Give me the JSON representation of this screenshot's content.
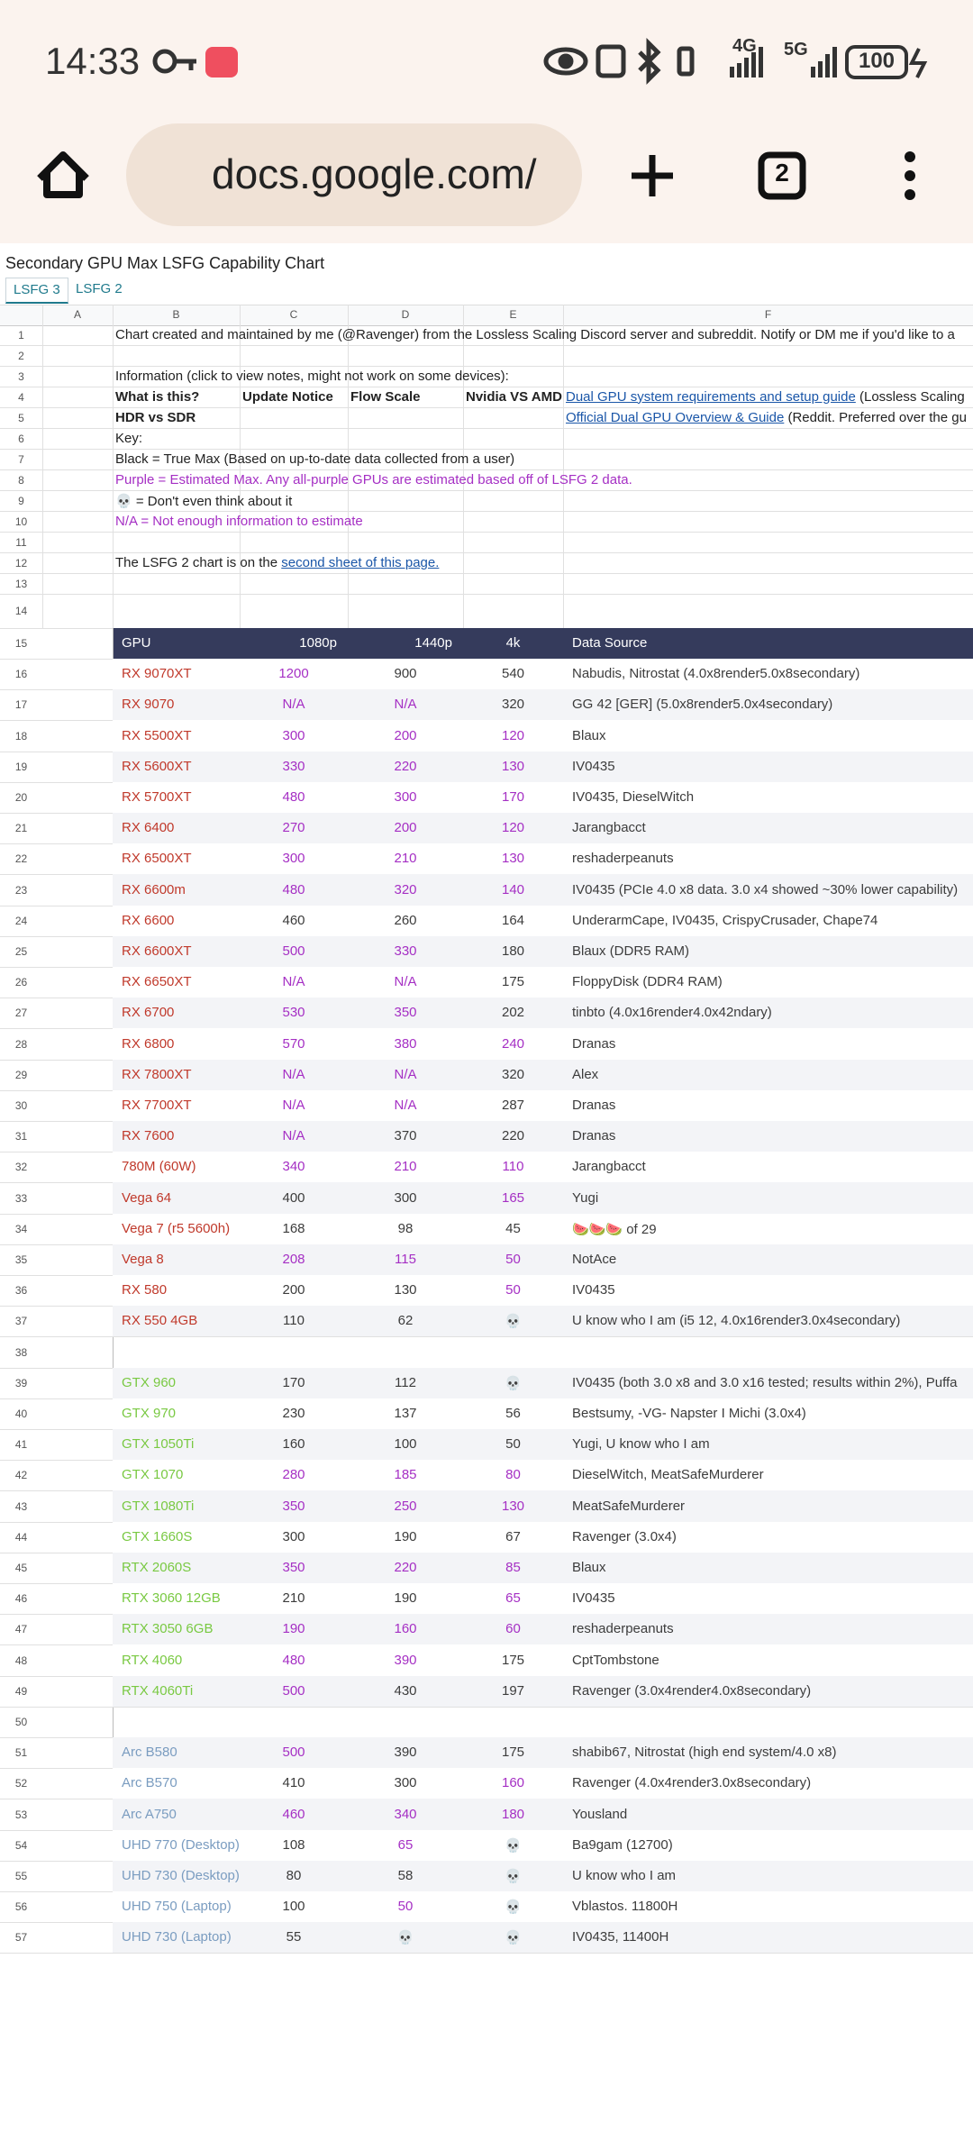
{
  "status_bar": {
    "time": "14:33",
    "network_1": "4G",
    "network_2": "5G",
    "battery": "100"
  },
  "browser": {
    "url": "docs.google.com/",
    "tab_count": "2"
  },
  "sheet": {
    "title": "Secondary GPU Max LSFG Capability Chart",
    "tabs": [
      "LSFG 3",
      "LSFG 2"
    ],
    "columns": [
      "A",
      "B",
      "C",
      "D",
      "E",
      "F"
    ],
    "info_rows": [
      {
        "number": 1,
        "text": "Chart created and maintained by me (@Ravenger) from the Lossless Scaling Discord server and subreddit. Notify or DM me if you'd like to a"
      },
      {
        "number": 2
      },
      {
        "number": 3,
        "text": "Information (click to view notes, might not work on some devices):"
      },
      {
        "number": 4,
        "cells": [
          "What is this?",
          "Update Notice",
          "Flow Scale",
          "Nvidia VS AMD"
        ],
        "link": "Dual GPU system requirements and setup guide",
        "after": " (Lossless Scaling"
      },
      {
        "number": 5,
        "cells": [
          "HDR vs SDR"
        ],
        "link": "Official Dual GPU Overview & Guide",
        "after": " (Reddit. Preferred over the gu"
      },
      {
        "number": 6,
        "text": "Key:"
      },
      {
        "number": 7,
        "text": "Black = True Max (Based on up-to-date data collected from a user)"
      },
      {
        "number": 8,
        "text": "Purple = Estimated Max. Any all-purple GPUs are estimated based off of LSFG 2 data.",
        "color": "#a52fc4"
      },
      {
        "number": 9,
        "text": "💀 = Don't even think about it"
      },
      {
        "number": 10,
        "text": "N/A = Not enough information to estimate",
        "color": "#a52fc4"
      },
      {
        "number": 11
      },
      {
        "number": 12,
        "text": "The LSFG 2 chart is on the ",
        "link": "second sheet of this page."
      },
      {
        "number": 13
      },
      {
        "number": 14
      }
    ],
    "table": {
      "header_number": 15,
      "header": [
        "GPU",
        "1080p",
        "1440p",
        "4k",
        "Data Source"
      ],
      "rows": [
        {
          "number": 16,
          "cells": [
            "RX 9070XT",
            1200,
            900,
            540,
            "Nabudis, Nitrostat (4.0x8render5.0x8secondary)"
          ],
          "colors": [
            "#c0392b",
            "#a52fc4",
            "#3c3c3c",
            "#3c3c3c"
          ]
        },
        {
          "number": 17,
          "cells": [
            "RX 9070",
            "N/A",
            "N/A",
            320,
            "GG 42 [GER] (5.0x8render5.0x4secondary)"
          ],
          "colors": [
            "#c0392b",
            "#a52fc4",
            "#a52fc4",
            "#3c3c3c"
          ]
        },
        {
          "number": 18,
          "cells": [
            "RX 5500XT",
            300,
            200,
            120,
            "Blaux"
          ],
          "colors": [
            "#c0392b",
            "#a52fc4",
            "#a52fc4",
            "#a52fc4"
          ]
        },
        {
          "number": 19,
          "cells": [
            "RX 5600XT",
            330,
            220,
            130,
            "IV0435"
          ],
          "colors": [
            "#c0392b",
            "#a52fc4",
            "#a52fc4",
            "#a52fc4"
          ]
        },
        {
          "number": 20,
          "cells": [
            "RX 5700XT",
            480,
            300,
            170,
            "IV0435, DieselWitch"
          ],
          "colors": [
            "#c0392b",
            "#a52fc4",
            "#a52fc4",
            "#a52fc4"
          ]
        },
        {
          "number": 21,
          "cells": [
            "RX 6400",
            270,
            200,
            120,
            "Jarangbacct"
          ],
          "colors": [
            "#c0392b",
            "#a52fc4",
            "#a52fc4",
            "#a52fc4"
          ]
        },
        {
          "number": 22,
          "cells": [
            "RX 6500XT",
            300,
            210,
            130,
            "reshaderpeanuts"
          ],
          "colors": [
            "#c0392b",
            "#a52fc4",
            "#a52fc4",
            "#a52fc4"
          ]
        },
        {
          "number": 23,
          "cells": [
            "RX 6600m",
            480,
            320,
            140,
            "IV0435 (PCIe 4.0 x8 data. 3.0 x4 showed ~30% lower capability)"
          ],
          "colors": [
            "#c0392b",
            "#a52fc4",
            "#a52fc4",
            "#a52fc4"
          ]
        },
        {
          "number": 24,
          "cells": [
            "RX 6600",
            460,
            260,
            164,
            "UnderarmCape, IV0435, CrispyCrusader, Chape74"
          ],
          "colors": [
            "#c0392b",
            "#3c3c3c",
            "#3c3c3c",
            "#3c3c3c"
          ]
        },
        {
          "number": 25,
          "cells": [
            "RX 6600XT",
            500,
            330,
            180,
            "Blaux (DDR5 RAM)"
          ],
          "colors": [
            "#c0392b",
            "#a52fc4",
            "#a52fc4",
            "#3c3c3c"
          ]
        },
        {
          "number": 26,
          "cells": [
            "RX 6650XT",
            "N/A",
            "N/A",
            175,
            "FloppyDisk (DDR4 RAM)"
          ],
          "colors": [
            "#c0392b",
            "#a52fc4",
            "#a52fc4",
            "#3c3c3c"
          ]
        },
        {
          "number": 27,
          "cells": [
            "RX 6700",
            530,
            350,
            202,
            "tinbto (4.0x16render4.0x42ndary)"
          ],
          "colors": [
            "#c0392b",
            "#a52fc4",
            "#a52fc4",
            "#3c3c3c"
          ]
        },
        {
          "number": 28,
          "cells": [
            "RX 6800",
            570,
            380,
            240,
            "Dranas"
          ],
          "colors": [
            "#c0392b",
            "#a52fc4",
            "#a52fc4",
            "#a52fc4"
          ]
        },
        {
          "number": 29,
          "cells": [
            "RX 7800XT",
            "N/A",
            "N/A",
            320,
            "Alex"
          ],
          "colors": [
            "#c0392b",
            "#a52fc4",
            "#a52fc4",
            "#3c3c3c"
          ]
        },
        {
          "number": 30,
          "cells": [
            "RX 7700XT",
            "N/A",
            "N/A",
            287,
            "Dranas"
          ],
          "colors": [
            "#c0392b",
            "#a52fc4",
            "#a52fc4",
            "#3c3c3c"
          ]
        },
        {
          "number": 31,
          "cells": [
            "RX 7600",
            "N/A",
            370,
            220,
            "Dranas"
          ],
          "colors": [
            "#c0392b",
            "#a52fc4",
            "#3c3c3c",
            "#3c3c3c"
          ]
        },
        {
          "number": 32,
          "cells": [
            "780M (60W)",
            340,
            210,
            110,
            "Jarangbacct"
          ],
          "colors": [
            "#c0392b",
            "#a52fc4",
            "#a52fc4",
            "#a52fc4"
          ]
        },
        {
          "number": 33,
          "cells": [
            "Vega 64",
            400,
            300,
            165,
            "Yugi"
          ],
          "colors": [
            "#c0392b",
            "#3c3c3c",
            "#3c3c3c",
            "#a52fc4"
          ]
        },
        {
          "number": 34,
          "cells": [
            "Vega 7 (r5 5600h)",
            168,
            98,
            45,
            "🍉🍉🍉 of 29"
          ],
          "colors": [
            "#c0392b",
            "#3c3c3c",
            "#3c3c3c",
            "#3c3c3c"
          ]
        },
        {
          "number": 35,
          "cells": [
            "Vega 8",
            208,
            115,
            50,
            "NotAce"
          ],
          "colors": [
            "#c0392b",
            "#a52fc4",
            "#a52fc4",
            "#a52fc4"
          ]
        },
        {
          "number": 36,
          "cells": [
            "RX 580",
            200,
            130,
            50,
            "IV0435"
          ],
          "colors": [
            "#c0392b",
            "#3c3c3c",
            "#3c3c3c",
            "#a52fc4"
          ]
        },
        {
          "number": 37,
          "cells": [
            "RX 550 4GB",
            110,
            62,
            "💀",
            "U know who I am (i5 12, 4.0x16render3.0x4secondary)"
          ],
          "colors": [
            "#c0392b",
            "#3c3c3c",
            "#3c3c3c",
            "#3c3c3c"
          ]
        },
        {
          "number": 38
        },
        {
          "number": 39,
          "cells": [
            "GTX 960",
            170,
            112,
            "💀",
            "IV0435 (both 3.0 x8 and 3.0 x16 tested; results within 2%), Puffa"
          ],
          "colors": [
            "#79c942",
            "#3c3c3c",
            "#3c3c3c",
            "#3c3c3c"
          ]
        },
        {
          "number": 40,
          "cells": [
            "GTX 970",
            230,
            137,
            56,
            "Bestsumy, -VG- Napster I Michi (3.0x4)"
          ],
          "colors": [
            "#79c942",
            "#3c3c3c",
            "#3c3c3c",
            "#3c3c3c"
          ]
        },
        {
          "number": 41,
          "cells": [
            "GTX 1050Ti",
            160,
            100,
            50,
            "Yugi, U know who I am"
          ],
          "colors": [
            "#79c942",
            "#3c3c3c",
            "#3c3c3c",
            "#3c3c3c"
          ]
        },
        {
          "number": 42,
          "cells": [
            "GTX 1070",
            280,
            185,
            80,
            "DieselWitch, MeatSafeMurderer"
          ],
          "colors": [
            "#79c942",
            "#a52fc4",
            "#a52fc4",
            "#a52fc4"
          ]
        },
        {
          "number": 43,
          "cells": [
            "GTX 1080Ti",
            350,
            250,
            130,
            "MeatSafeMurderer"
          ],
          "colors": [
            "#79c942",
            "#a52fc4",
            "#a52fc4",
            "#a52fc4"
          ]
        },
        {
          "number": 44,
          "cells": [
            "GTX 1660S",
            300,
            190,
            67,
            "Ravenger (3.0x4)"
          ],
          "colors": [
            "#79c942",
            "#3c3c3c",
            "#3c3c3c",
            "#3c3c3c"
          ]
        },
        {
          "number": 45,
          "cells": [
            "RTX 2060S",
            350,
            220,
            85,
            "Blaux"
          ],
          "colors": [
            "#79c942",
            "#a52fc4",
            "#a52fc4",
            "#a52fc4"
          ]
        },
        {
          "number": 46,
          "cells": [
            "RTX 3060 12GB",
            210,
            190,
            65,
            "IV0435"
          ],
          "colors": [
            "#79c942",
            "#3c3c3c",
            "#3c3c3c",
            "#a52fc4"
          ]
        },
        {
          "number": 47,
          "cells": [
            "RTX 3050 6GB",
            190,
            160,
            60,
            "reshaderpeanuts"
          ],
          "colors": [
            "#79c942",
            "#a52fc4",
            "#a52fc4",
            "#a52fc4"
          ]
        },
        {
          "number": 48,
          "cells": [
            "RTX 4060",
            480,
            390,
            175,
            "CptTombstone"
          ],
          "colors": [
            "#79c942",
            "#a52fc4",
            "#a52fc4",
            "#3c3c3c"
          ]
        },
        {
          "number": 49,
          "cells": [
            "RTX 4060Ti",
            500,
            430,
            197,
            "Ravenger (3.0x4render4.0x8secondary)"
          ],
          "colors": [
            "#79c942",
            "#a52fc4",
            "#3c3c3c",
            "#3c3c3c"
          ]
        },
        {
          "number": 50
        },
        {
          "number": 51,
          "cells": [
            "Arc B580",
            500,
            390,
            175,
            "shabib67, Nitrostat (high end system/4.0 x8)"
          ],
          "colors": [
            "#7a9cc0",
            "#a52fc4",
            "#3c3c3c",
            "#3c3c3c"
          ]
        },
        {
          "number": 52,
          "cells": [
            "Arc B570",
            410,
            300,
            160,
            "Ravenger (4.0x4render3.0x8secondary)"
          ],
          "colors": [
            "#7a9cc0",
            "#3c3c3c",
            "#3c3c3c",
            "#a52fc4"
          ]
        },
        {
          "number": 53,
          "cells": [
            "Arc A750",
            460,
            340,
            180,
            "Yousland"
          ],
          "colors": [
            "#7a9cc0",
            "#a52fc4",
            "#a52fc4",
            "#a52fc4"
          ]
        },
        {
          "number": 54,
          "cells": [
            "UHD 770 (Desktop)",
            108,
            65,
            "💀",
            "Ba9gam (12700)"
          ],
          "colors": [
            "#7a9cc0",
            "#3c3c3c",
            "#a52fc4",
            "#3c3c3c"
          ]
        },
        {
          "number": 55,
          "cells": [
            "UHD 730 (Desktop)",
            80,
            58,
            "💀",
            "U know who I am"
          ],
          "colors": [
            "#7a9cc0",
            "#3c3c3c",
            "#3c3c3c",
            "#3c3c3c"
          ]
        },
        {
          "number": 56,
          "cells": [
            "UHD 750 (Laptop)",
            100,
            50,
            "💀",
            "Vblastos. 11800H"
          ],
          "colors": [
            "#7a9cc0",
            "#3c3c3c",
            "#a52fc4",
            "#3c3c3c"
          ]
        },
        {
          "number": 57,
          "cells": [
            "UHD 730 (Laptop)",
            55,
            "💀",
            "💀",
            "IV0435, 11400H"
          ],
          "colors": [
            "#7a9cc0",
            "#3c3c3c",
            "#3c3c3c",
            "#3c3c3c"
          ]
        }
      ]
    }
  }
}
